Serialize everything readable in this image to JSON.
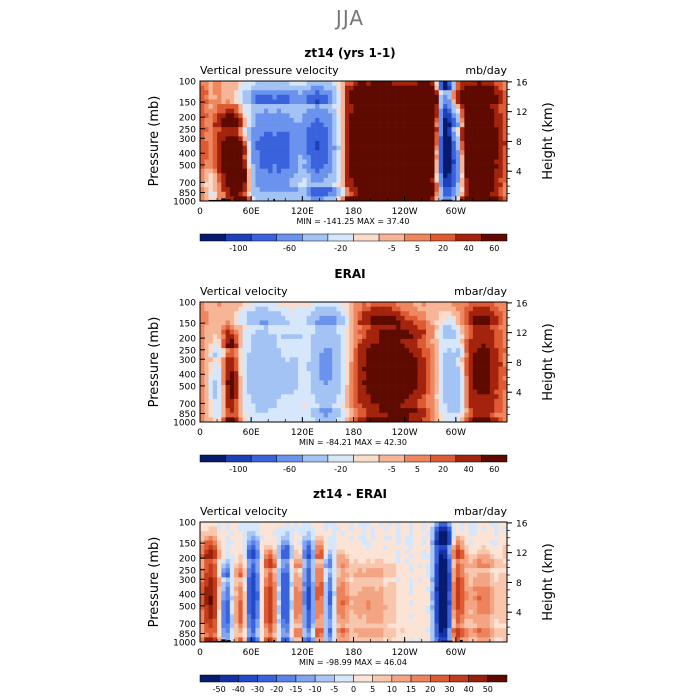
{
  "title": "JJA",
  "colors": {
    "scale11": [
      "#061b6e",
      "#1d3fb8",
      "#3a62dd",
      "#6b93ee",
      "#a4c3f5",
      "#d6e7fb",
      "#fbdccb",
      "#f6b596",
      "#ee865f",
      "#de5a32",
      "#a3230d",
      "#5e0a00"
    ],
    "scale15": [
      "#061b6e",
      "#1430a6",
      "#2249c9",
      "#3a62dd",
      "#5a82e9",
      "#80a4f0",
      "#a9c6f6",
      "#d6e7fb",
      "#fbe3d6",
      "#f8c6ad",
      "#f3a583",
      "#ec835c",
      "#de5a32",
      "#c23c1c",
      "#96200a",
      "#5e0a00"
    ],
    "topography": "#000000"
  },
  "chart_data": [
    {
      "type": "heatmap",
      "title": "zt14 (yrs 1-1)",
      "left_label": "Vertical pressure velocity",
      "right_label": "mb/day",
      "ylabel": "Pressure (mb)",
      "y2label": "Height (km)",
      "x_ticks": [
        "0",
        "60E",
        "120E",
        "180",
        "120W",
        "60W"
      ],
      "x_tick_lon": [
        0,
        60,
        120,
        180,
        240,
        300
      ],
      "xlim": [
        0,
        360
      ],
      "y_ticks": [
        "100",
        "150",
        "200",
        "250",
        "300",
        "400",
        "500",
        "700",
        "850",
        "1000"
      ],
      "y_tick_p": [
        100,
        150,
        200,
        250,
        300,
        400,
        500,
        700,
        850,
        1000
      ],
      "ylim": [
        100,
        1000
      ],
      "y_scale": "log",
      "y2_ticks": [
        "4",
        "8",
        "12",
        "16"
      ],
      "y2_tick_km": [
        4,
        8,
        12,
        16
      ],
      "stats": "MIN = -141.25   MAX =  37.40",
      "colorbar_labels": [
        "-100",
        "-60",
        "-20",
        "-5",
        "5",
        "20",
        "40",
        "60"
      ],
      "colorbar_levels": [
        -120,
        -100,
        -80,
        -60,
        -40,
        -20,
        -10,
        -5,
        0,
        5,
        10,
        20,
        30,
        40,
        50,
        60,
        70
      ],
      "scale": "scale11",
      "amp": 55,
      "topography": true,
      "features": [
        {
          "lon": 18,
          "w": 11,
          "a": -0.25,
          "p": [
            750,
            1000
          ]
        },
        {
          "lon": 38,
          "w": 12,
          "a": 0.8,
          "p": [
            250,
            1000
          ]
        },
        {
          "lon": 52,
          "w": 6,
          "a": 0.55,
          "p": [
            400,
            900
          ]
        },
        {
          "lon": 72,
          "w": 16,
          "a": -1.15,
          "p": [
            150,
            1000
          ]
        },
        {
          "lon": 100,
          "w": 12,
          "a": -0.8,
          "p": [
            150,
            1000
          ]
        },
        {
          "lon": 140,
          "w": 18,
          "a": -1.5,
          "p": [
            150,
            800
          ]
        },
        {
          "lon": 122,
          "w": 5,
          "a": 0.35,
          "p": [
            500,
            1000
          ]
        },
        {
          "lon": 200,
          "w": 25,
          "a": 1.0,
          "p": [
            150,
            900
          ]
        },
        {
          "lon": 235,
          "w": 18,
          "a": 1.05,
          "p": [
            200,
            800
          ]
        },
        {
          "lon": 265,
          "w": 10,
          "a": 0.9,
          "p": [
            150,
            700
          ]
        },
        {
          "lon": 288,
          "w": 6,
          "a": -2.4,
          "p": [
            120,
            1000
          ]
        },
        {
          "lon": 300,
          "w": 6,
          "a": -1.2,
          "p": [
            250,
            1000
          ]
        },
        {
          "lon": 325,
          "w": 18,
          "a": 0.9,
          "p": [
            150,
            950
          ]
        },
        {
          "lon": 250,
          "w": 40,
          "a": 0.3,
          "p": [
            100,
            250
          ]
        }
      ]
    },
    {
      "type": "heatmap",
      "title": "ERAI",
      "left_label": "Vertical velocity",
      "right_label": "mbar/day",
      "ylabel": "Pressure (mb)",
      "y2label": "Height (km)",
      "x_ticks": [
        "0",
        "60E",
        "120E",
        "180",
        "120W",
        "60W"
      ],
      "x_tick_lon": [
        0,
        60,
        120,
        180,
        240,
        300
      ],
      "xlim": [
        0,
        360
      ],
      "y_ticks": [
        "100",
        "150",
        "200",
        "250",
        "300",
        "400",
        "500",
        "700",
        "850",
        "1000"
      ],
      "y_tick_p": [
        100,
        150,
        200,
        250,
        300,
        400,
        500,
        700,
        850,
        1000
      ],
      "ylim": [
        100,
        1000
      ],
      "y_scale": "log",
      "y2_ticks": [
        "4",
        "8",
        "12",
        "16"
      ],
      "y2_tick_km": [
        4,
        8,
        12,
        16
      ],
      "stats": "MIN =  -84.21   MAX =  42.30",
      "colorbar_labels": [
        "-100",
        "-60",
        "-20",
        "-5",
        "5",
        "20",
        "40",
        "60"
      ],
      "colorbar_levels": [
        -120,
        -100,
        -80,
        -60,
        -40,
        -20,
        -10,
        -5,
        0,
        5,
        10,
        20,
        30,
        40,
        50,
        60,
        70
      ],
      "scale": "scale11",
      "amp": 35,
      "topography": false,
      "features": [
        {
          "lon": 22,
          "w": 8,
          "a": -0.7,
          "p": [
            300,
            1000
          ]
        },
        {
          "lon": 35,
          "w": 7,
          "a": 0.95,
          "p": [
            250,
            900
          ]
        },
        {
          "lon": 75,
          "w": 18,
          "a": -1.05,
          "p": [
            150,
            1000
          ]
        },
        {
          "lon": 110,
          "w": 8,
          "a": -0.4,
          "p": [
            200,
            900
          ]
        },
        {
          "lon": 148,
          "w": 16,
          "a": -1.3,
          "p": [
            150,
            800
          ]
        },
        {
          "lon": 210,
          "w": 22,
          "a": 0.8,
          "p": [
            150,
            900
          ]
        },
        {
          "lon": 240,
          "w": 18,
          "a": 0.65,
          "p": [
            200,
            800
          ]
        },
        {
          "lon": 292,
          "w": 8,
          "a": -0.95,
          "p": [
            200,
            1000
          ]
        },
        {
          "lon": 305,
          "w": 5,
          "a": -0.6,
          "p": [
            300,
            1000
          ]
        },
        {
          "lon": 330,
          "w": 16,
          "a": 0.7,
          "p": [
            150,
            900
          ]
        },
        {
          "lon": 180,
          "w": 90,
          "a": -0.15,
          "p": [
            100,
            180
          ]
        }
      ]
    },
    {
      "type": "heatmap",
      "title": "zt14 - ERAI",
      "left_label": "Vertical velocity",
      "right_label": "mbar/day",
      "ylabel": "Pressure (mb)",
      "y2label": "Height (km)",
      "x_ticks": [
        "0",
        "60E",
        "120E",
        "180",
        "120W",
        "60W"
      ],
      "x_tick_lon": [
        0,
        60,
        120,
        180,
        240,
        300
      ],
      "xlim": [
        0,
        360
      ],
      "y_ticks": [
        "100",
        "150",
        "200",
        "250",
        "300",
        "400",
        "500",
        "700",
        "850",
        "1000"
      ],
      "y_tick_p": [
        100,
        150,
        200,
        250,
        300,
        400,
        500,
        700,
        850,
        1000
      ],
      "ylim": [
        100,
        1000
      ],
      "y_scale": "log",
      "y2_ticks": [
        "4",
        "8",
        "12",
        "16"
      ],
      "y2_tick_km": [
        4,
        8,
        12,
        16
      ],
      "stats": "MIN = -98.99   MAX =  46.04",
      "colorbar_labels": [
        "-50",
        "-40",
        "-30",
        "-20",
        "-15",
        "-10",
        "-5",
        "0",
        "5",
        "10",
        "15",
        "20",
        "30",
        "40",
        "50"
      ],
      "colorbar_levels": [
        -60,
        -50,
        -40,
        -30,
        -20,
        -15,
        -10,
        -5,
        0,
        5,
        10,
        15,
        20,
        30,
        40,
        50,
        60
      ],
      "scale": "scale15",
      "amp": 42,
      "topography": true,
      "features": [
        {
          "lon": 12,
          "w": 7,
          "a": 1.2,
          "p": [
            200,
            900
          ]
        },
        {
          "lon": 30,
          "w": 5,
          "a": -0.6,
          "p": [
            300,
            1000
          ]
        },
        {
          "lon": 48,
          "w": 5,
          "a": 0.55,
          "p": [
            300,
            900
          ]
        },
        {
          "lon": 62,
          "w": 5,
          "a": -0.9,
          "p": [
            200,
            900
          ]
        },
        {
          "lon": 82,
          "w": 5,
          "a": 0.9,
          "p": [
            250,
            900
          ]
        },
        {
          "lon": 100,
          "w": 5,
          "a": -0.7,
          "p": [
            200,
            900
          ]
        },
        {
          "lon": 115,
          "w": 4,
          "a": 0.6,
          "p": [
            250,
            800
          ]
        },
        {
          "lon": 128,
          "w": 5,
          "a": -0.8,
          "p": [
            200,
            900
          ]
        },
        {
          "lon": 140,
          "w": 5,
          "a": 0.7,
          "p": [
            200,
            800
          ]
        },
        {
          "lon": 152,
          "w": 5,
          "a": -0.6,
          "p": [
            250,
            800
          ]
        },
        {
          "lon": 165,
          "w": 6,
          "a": 0.45,
          "p": [
            250,
            800
          ]
        },
        {
          "lon": 200,
          "w": 20,
          "a": 0.35,
          "p": [
            300,
            800
          ]
        },
        {
          "lon": 285,
          "w": 6,
          "a": -2.1,
          "p": [
            150,
            1000
          ]
        },
        {
          "lon": 302,
          "w": 6,
          "a": 0.8,
          "p": [
            200,
            800
          ]
        },
        {
          "lon": 330,
          "w": 14,
          "a": 0.45,
          "p": [
            250,
            800
          ]
        }
      ]
    }
  ]
}
